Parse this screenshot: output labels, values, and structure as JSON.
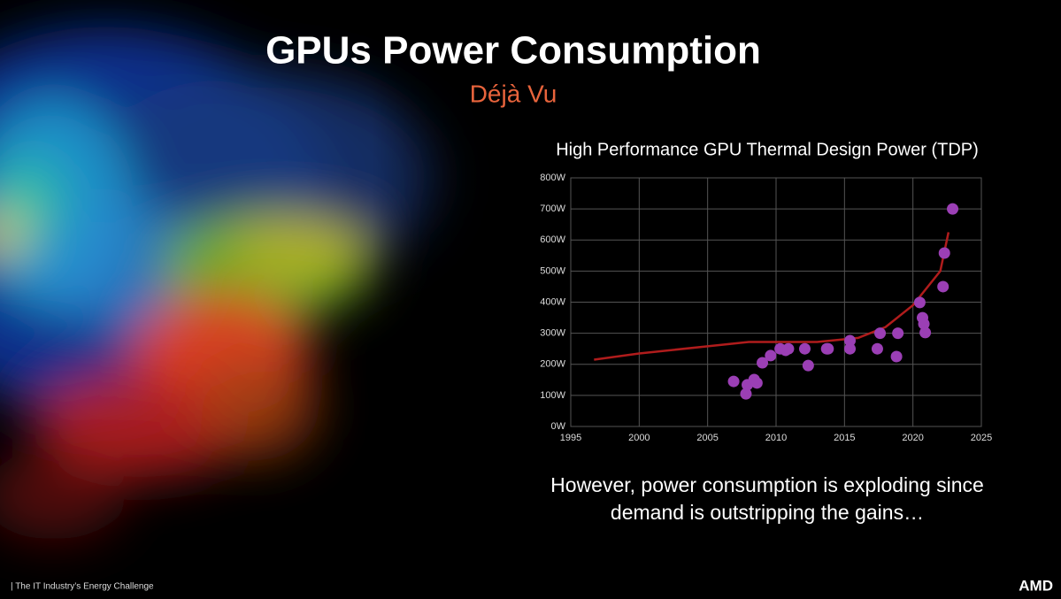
{
  "header": {
    "title": "GPUs Power Consumption",
    "subtitle": "Déjà Vu"
  },
  "chart_data": {
    "type": "scatter",
    "title": "High Performance GPU Thermal Design Power (TDP)",
    "points": {
      "color": "#9b3fb5",
      "x": [
        2006.9,
        2007.8,
        2007.9,
        2008.4,
        2008.6,
        2009.0,
        2009.6,
        2010.3,
        2010.7,
        2010.9,
        2012.1,
        2012.35,
        2013.7,
        2013.8,
        2015.4,
        2015.4,
        2017.4,
        2017.6,
        2018.8,
        2018.9,
        2020.5,
        2020.7,
        2020.8,
        2020.9,
        2022.2,
        2022.3,
        2022.9
      ],
      "values": [
        145,
        105,
        134,
        151,
        140,
        205,
        228,
        250,
        245,
        250,
        250,
        196,
        250,
        250,
        276,
        250,
        250,
        300,
        225,
        300,
        399,
        350,
        330,
        302,
        450,
        558,
        700
      ]
    },
    "trend": {
      "color": "#b01c1c",
      "x": [
        1996.7,
        2000,
        2005,
        2008,
        2010,
        2013,
        2016,
        2018,
        2020,
        2022,
        2022.6
      ],
      "values": [
        215,
        235,
        258,
        272,
        272,
        272,
        285,
        320,
        390,
        500,
        625
      ]
    },
    "xlim": [
      1995,
      2025
    ],
    "xticks": [
      1995,
      2000,
      2005,
      2010,
      2015,
      2020,
      2025
    ],
    "ylim": [
      0,
      800
    ],
    "yticks": [
      {
        "value": 0,
        "label": "0W"
      },
      {
        "value": 100,
        "label": "100W"
      },
      {
        "value": 200,
        "label": "200W"
      },
      {
        "value": 300,
        "label": "300W"
      },
      {
        "value": 400,
        "label": "400W"
      },
      {
        "value": 500,
        "label": "500W"
      },
      {
        "value": 600,
        "label": "600W"
      },
      {
        "value": 700,
        "label": "700W"
      },
      {
        "value": 800,
        "label": "800W"
      }
    ],
    "grid": true
  },
  "caption": [
    "However, power consumption is exploding since",
    "demand is outstripping the gains…"
  ],
  "footer": {
    "text": "|  The IT Industry’s Energy Challenge",
    "logo": "AMD"
  }
}
